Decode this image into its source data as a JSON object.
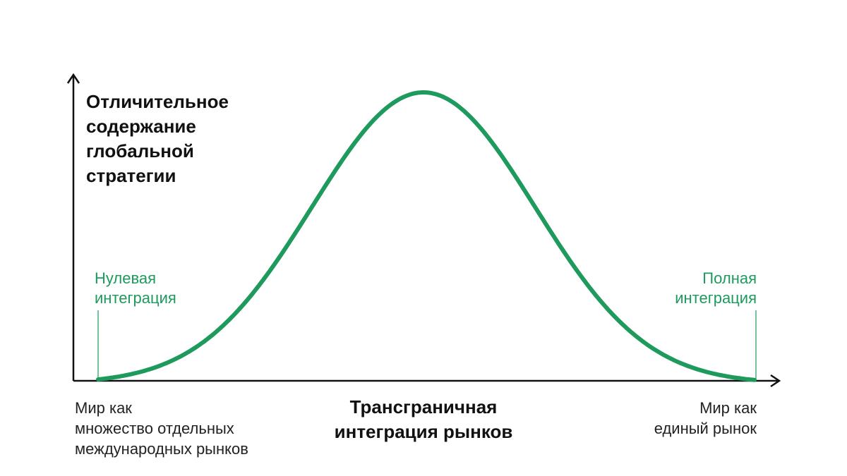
{
  "y_axis_label": [
    "Отличительное",
    "содержание",
    "глобальной",
    "стратегии"
  ],
  "x_axis_label": [
    "Трансграничная",
    "интеграция рынков"
  ],
  "left_marker_label": [
    "Нулевая",
    "интеграция"
  ],
  "right_marker_label": [
    "Полная",
    "интеграция"
  ],
  "left_caption": [
    "Мир как",
    "множество отдельных",
    "международных рынков"
  ],
  "right_caption": [
    "Мир как",
    "единый рынок"
  ],
  "colors": {
    "curve": "#1d9a5c",
    "marker_label": "#1d9a5c",
    "axis": "#111111",
    "background": "#ffffff"
  },
  "curve_shape": "bell"
}
